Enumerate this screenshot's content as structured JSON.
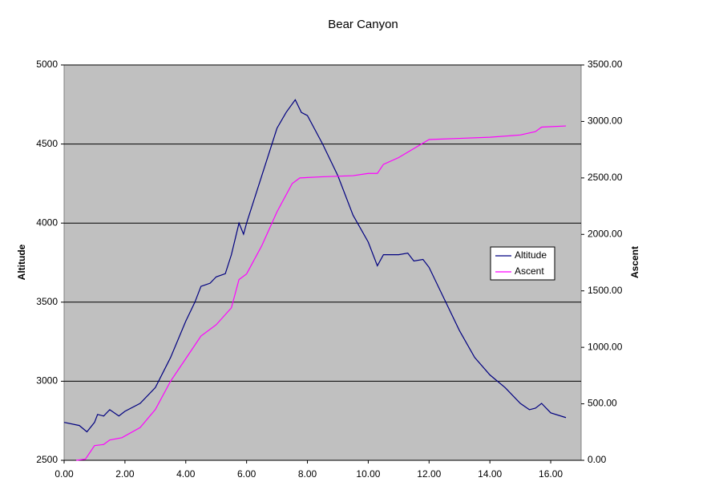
{
  "chart_data": {
    "type": "line",
    "title": "Bear Canyon",
    "y_label": "Altitude",
    "y2_label": "Ascent",
    "xlim": [
      0,
      17
    ],
    "xticks": [
      {
        "value": 0,
        "label": "0.00"
      },
      {
        "value": 2,
        "label": "2.00"
      },
      {
        "value": 4,
        "label": "4.00"
      },
      {
        "value": 6,
        "label": "6.00"
      },
      {
        "value": 8,
        "label": "8.00"
      },
      {
        "value": 10,
        "label": "10.00"
      },
      {
        "value": 12,
        "label": "12.00"
      },
      {
        "value": 14,
        "label": "14.00"
      },
      {
        "value": 16,
        "label": "16.00"
      }
    ],
    "ylim": [
      2500,
      5000
    ],
    "yticks": [
      2500,
      3000,
      3500,
      4000,
      4500,
      5000
    ],
    "y2lim": [
      0,
      3500
    ],
    "y2ticks": [
      {
        "value": 0,
        "label": "0.00"
      },
      {
        "value": 500,
        "label": "500.00"
      },
      {
        "value": 1000,
        "label": "1000.00"
      },
      {
        "value": 1500,
        "label": "1500.00"
      },
      {
        "value": 2000,
        "label": "2000.00"
      },
      {
        "value": 2500,
        "label": "2500.00"
      },
      {
        "value": 3000,
        "label": "3000.00"
      },
      {
        "value": 3500,
        "label": "3500.00"
      }
    ],
    "grid": true,
    "legend": "right",
    "background": "#c0c0c0",
    "series": [
      {
        "name": "Altitude",
        "color": "#000080",
        "x": [
          0,
          0.5,
          0.75,
          1.0,
          1.1,
          1.3,
          1.5,
          1.8,
          2.0,
          2.5,
          3.0,
          3.5,
          4.0,
          4.3,
          4.5,
          4.8,
          5.0,
          5.3,
          5.5,
          5.75,
          5.9,
          6.0,
          6.5,
          7.0,
          7.3,
          7.6,
          7.8,
          8.0,
          8.5,
          9.0,
          9.5,
          10.0,
          10.3,
          10.5,
          11.0,
          11.3,
          11.5,
          11.8,
          12.0,
          12.5,
          13.0,
          13.5,
          14.0,
          14.5,
          15.0,
          15.3,
          15.5,
          15.7,
          16.0,
          16.5
        ],
        "values": [
          2740,
          2720,
          2680,
          2740,
          2790,
          2780,
          2820,
          2780,
          2810,
          2860,
          2960,
          3150,
          3380,
          3500,
          3600,
          3620,
          3660,
          3680,
          3800,
          4000,
          3930,
          4000,
          4300,
          4600,
          4700,
          4780,
          4700,
          4680,
          4500,
          4300,
          4050,
          3880,
          3730,
          3800,
          3800,
          3810,
          3760,
          3770,
          3720,
          3520,
          3320,
          3150,
          3040,
          2960,
          2860,
          2820,
          2830,
          2860,
          2800,
          2770
        ]
      },
      {
        "name": "Ascent",
        "color": "#ff00ff",
        "axis": "y2",
        "x": [
          0.4,
          0.7,
          1.0,
          1.3,
          1.5,
          1.9,
          2.5,
          3.0,
          3.5,
          4.0,
          4.5,
          5.0,
          5.5,
          5.75,
          6.0,
          6.5,
          7.0,
          7.5,
          7.75,
          8.5,
          9.5,
          10.0,
          10.3,
          10.5,
          11.0,
          11.5,
          12.0,
          13.0,
          14.0,
          15.0,
          15.5,
          15.7,
          16.5
        ],
        "values": [
          0,
          10,
          130,
          140,
          180,
          200,
          290,
          450,
          700,
          900,
          1100,
          1200,
          1350,
          1600,
          1650,
          1900,
          2200,
          2450,
          2500,
          2510,
          2520,
          2540,
          2540,
          2620,
          2680,
          2760,
          2840,
          2850,
          2860,
          2880,
          2910,
          2950,
          2960
        ]
      }
    ]
  }
}
